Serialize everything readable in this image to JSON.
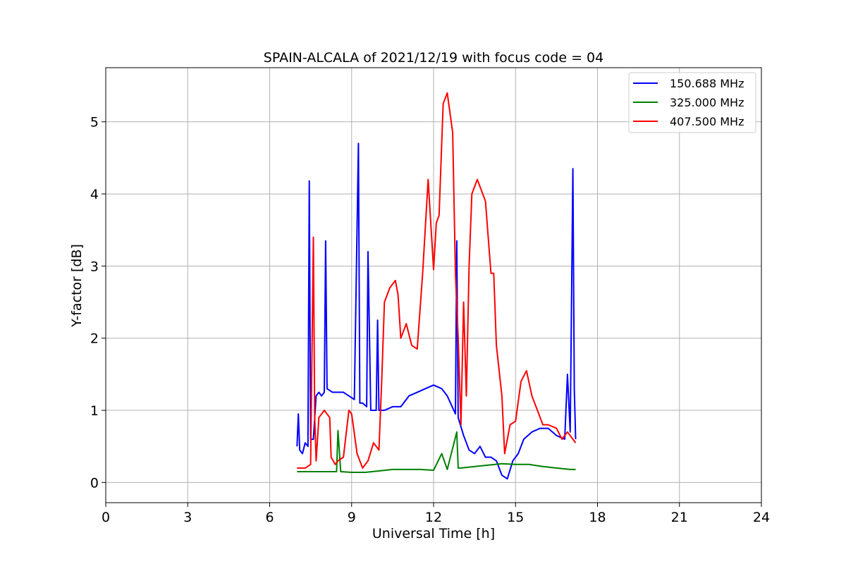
{
  "chart_data": {
    "type": "line",
    "title": "SPAIN-ALCALA of 2021/12/19 with focus code = 04",
    "xlabel": "Universal Time [h]",
    "ylabel": "Y-factor [dB]",
    "xlim": [
      0,
      24
    ],
    "ylim": [
      -0.28,
      5.75
    ],
    "xticks": [
      0,
      3,
      6,
      9,
      12,
      15,
      18,
      21,
      24
    ],
    "yticks": [
      0,
      1,
      2,
      3,
      4,
      5
    ],
    "grid": true,
    "legend_position": "top-right",
    "series": [
      {
        "name": "150.688 MHz",
        "color": "#0000ff",
        "x": [
          7.0,
          7.05,
          7.1,
          7.2,
          7.3,
          7.4,
          7.45,
          7.5,
          7.6,
          7.7,
          7.8,
          7.9,
          8.0,
          8.05,
          8.1,
          8.3,
          8.5,
          8.7,
          8.9,
          9.1,
          9.25,
          9.3,
          9.4,
          9.55,
          9.6,
          9.7,
          9.9,
          9.95,
          10.0,
          10.2,
          10.5,
          10.8,
          11.1,
          11.4,
          11.7,
          12.0,
          12.3,
          12.5,
          12.8,
          12.85,
          12.9,
          13.1,
          13.3,
          13.5,
          13.7,
          13.9,
          14.1,
          14.3,
          14.5,
          14.7,
          14.9,
          15.1,
          15.3,
          15.6,
          15.9,
          16.2,
          16.5,
          16.8,
          16.9,
          17.0,
          17.1,
          17.15,
          17.2
        ],
        "y": [
          0.5,
          0.95,
          0.45,
          0.4,
          0.55,
          0.5,
          4.18,
          0.6,
          0.6,
          1.2,
          1.25,
          1.2,
          1.25,
          3.35,
          1.3,
          1.25,
          1.25,
          1.25,
          1.2,
          1.15,
          4.7,
          1.1,
          1.1,
          1.05,
          3.2,
          1.0,
          1.0,
          2.25,
          1.0,
          1.0,
          1.05,
          1.05,
          1.2,
          1.25,
          1.3,
          1.35,
          1.3,
          1.2,
          0.95,
          3.35,
          0.9,
          0.65,
          0.45,
          0.4,
          0.5,
          0.35,
          0.35,
          0.3,
          0.1,
          0.05,
          0.3,
          0.4,
          0.6,
          0.7,
          0.75,
          0.75,
          0.65,
          0.6,
          1.5,
          0.7,
          4.35,
          1.3,
          0.6
        ]
      },
      {
        "name": "325.000 MHz",
        "color": "#008000",
        "x": [
          7.0,
          7.5,
          8.0,
          8.45,
          8.5,
          8.6,
          9.0,
          9.5,
          10.0,
          10.5,
          11.0,
          11.5,
          12.0,
          12.3,
          12.5,
          12.85,
          12.9,
          13.0,
          13.5,
          14.0,
          14.5,
          15.0,
          15.5,
          16.0,
          16.5,
          17.0,
          17.2
        ],
        "y": [
          0.15,
          0.15,
          0.15,
          0.15,
          0.72,
          0.15,
          0.14,
          0.14,
          0.16,
          0.18,
          0.18,
          0.18,
          0.17,
          0.4,
          0.18,
          0.7,
          0.2,
          0.2,
          0.22,
          0.24,
          0.26,
          0.25,
          0.25,
          0.22,
          0.2,
          0.18,
          0.18
        ]
      },
      {
        "name": "407.500 MHz",
        "color": "#ff0000",
        "x": [
          7.0,
          7.3,
          7.5,
          7.6,
          7.65,
          7.7,
          7.8,
          8.0,
          8.2,
          8.25,
          8.4,
          8.5,
          8.7,
          8.9,
          9.0,
          9.2,
          9.4,
          9.6,
          9.8,
          10.0,
          10.1,
          10.2,
          10.4,
          10.6,
          10.7,
          10.8,
          11.0,
          11.2,
          11.4,
          11.6,
          11.8,
          12.0,
          12.1,
          12.2,
          12.35,
          12.5,
          12.7,
          12.8,
          12.9,
          13.0,
          13.1,
          13.2,
          13.3,
          13.4,
          13.6,
          13.9,
          14.1,
          14.2,
          14.3,
          14.5,
          14.6,
          14.8,
          15.0,
          15.2,
          15.4,
          15.6,
          15.8,
          16.0,
          16.2,
          16.5,
          16.7,
          16.9,
          17.2
        ],
        "y": [
          0.2,
          0.2,
          0.25,
          3.4,
          0.9,
          0.3,
          0.9,
          1.0,
          0.9,
          0.35,
          0.25,
          0.3,
          0.35,
          1.0,
          0.95,
          0.4,
          0.2,
          0.3,
          0.55,
          0.45,
          1.4,
          2.5,
          2.7,
          2.8,
          2.6,
          2.0,
          2.2,
          1.9,
          1.85,
          2.9,
          4.2,
          2.95,
          3.6,
          3.7,
          5.25,
          5.4,
          4.85,
          2.9,
          2.0,
          0.8,
          2.5,
          1.2,
          3.0,
          4.0,
          4.2,
          3.9,
          2.9,
          2.9,
          1.9,
          1.2,
          0.4,
          0.8,
          0.85,
          1.4,
          1.55,
          1.2,
          1.0,
          0.8,
          0.8,
          0.75,
          0.6,
          0.7,
          0.55
        ]
      }
    ]
  }
}
